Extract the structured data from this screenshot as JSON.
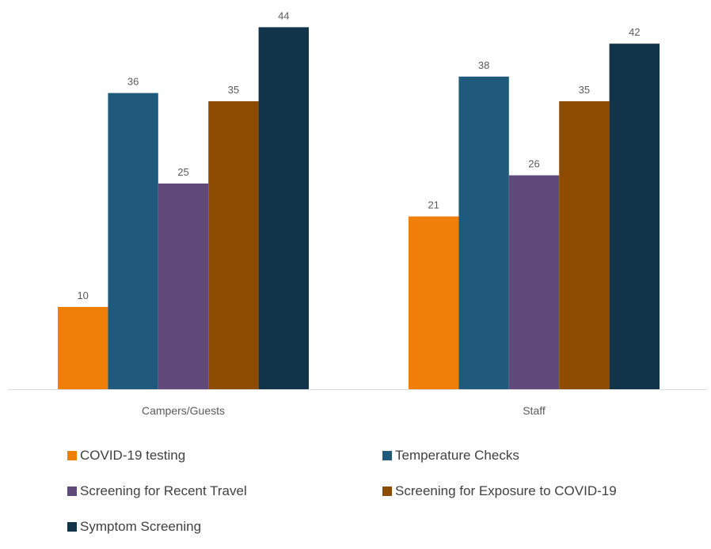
{
  "chart_data": {
    "type": "bar",
    "categories": [
      "Campers/Guests",
      "Staff"
    ],
    "series": [
      {
        "name": "COVID-19 testing",
        "color": "#F07F09",
        "values": [
          10,
          21
        ]
      },
      {
        "name": "Temperature Checks",
        "color": "#1F5A7D",
        "values": [
          36,
          38
        ]
      },
      {
        "name": "Screening for Recent Travel",
        "color": "#604A7B",
        "values": [
          25,
          26
        ]
      },
      {
        "name": "Screening for Exposure to COVID-19",
        "color": "#8E4B02",
        "values": [
          35,
          35
        ]
      },
      {
        "name": "Symptom Screening",
        "color": "#12344B",
        "values": [
          44,
          42
        ]
      }
    ],
    "ylim": [
      0,
      45
    ],
    "grid": false,
    "legend": "bottom",
    "data_labels": true
  }
}
